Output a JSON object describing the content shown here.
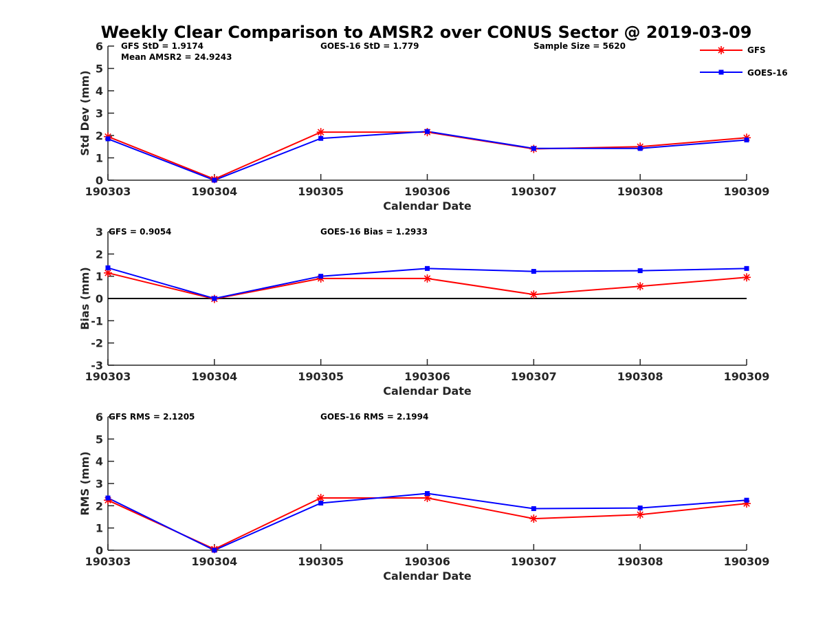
{
  "chart_data": [
    {
      "type": "line",
      "title": "Weekly Clear Comparison to AMSR2 over CONUS Sector @ 2019-03-09",
      "categories": [
        "190303",
        "190304",
        "190305",
        "190306",
        "190307",
        "190308",
        "190309"
      ],
      "xlabel": "Calendar Date",
      "ylabel": "Std Dev (mm)",
      "ylim": [
        0,
        6
      ],
      "yticks": [
        "0",
        "1",
        "2",
        "3",
        "4",
        "5",
        "6"
      ],
      "grid": false,
      "legend_position": "top-right",
      "annotations": [
        "GFS StD = 1.9174",
        "Mean AMSR2 = 24.9243",
        "GOES-16 StD = 1.779",
        "Sample Size = 5620"
      ],
      "series": [
        {
          "name": "GFS",
          "color": "#ff0000",
          "marker": "asterisk",
          "values": [
            1.95,
            0.05,
            2.15,
            2.15,
            1.4,
            1.5,
            1.9
          ]
        },
        {
          "name": "GOES-16",
          "color": "#0000ff",
          "marker": "square",
          "values": [
            1.85,
            0.0,
            1.87,
            2.18,
            1.42,
            1.42,
            1.8
          ]
        }
      ]
    },
    {
      "type": "line",
      "categories": [
        "190303",
        "190304",
        "190305",
        "190306",
        "190307",
        "190308",
        "190309"
      ],
      "xlabel": "Calendar Date",
      "ylabel": "Bias (mm)",
      "ylim": [
        -3,
        3
      ],
      "yticks": [
        "-3",
        "-2",
        "-1",
        "0",
        "1",
        "2",
        "3"
      ],
      "zero_line": true,
      "grid": false,
      "annotations": [
        "GFS = 0.9054",
        "GOES-16 Bias  = 1.2933"
      ],
      "series": [
        {
          "name": "GFS",
          "color": "#ff0000",
          "marker": "asterisk",
          "values": [
            1.15,
            -0.02,
            0.9,
            0.9,
            0.18,
            0.55,
            0.95
          ]
        },
        {
          "name": "GOES-16",
          "color": "#0000ff",
          "marker": "square",
          "values": [
            1.38,
            0.0,
            1.0,
            1.35,
            1.22,
            1.25,
            1.35
          ]
        }
      ]
    },
    {
      "type": "line",
      "categories": [
        "190303",
        "190304",
        "190305",
        "190306",
        "190307",
        "190308",
        "190309"
      ],
      "xlabel": "Calendar Date",
      "ylabel": "RMS (mm)",
      "ylim": [
        0,
        6
      ],
      "yticks": [
        "0",
        "1",
        "2",
        "3",
        "4",
        "5",
        "6"
      ],
      "grid": false,
      "annotations": [
        "GFS RMS = 2.1205",
        "GOES-16 RMS = 2.1994"
      ],
      "series": [
        {
          "name": "GFS",
          "color": "#ff0000",
          "marker": "asterisk",
          "values": [
            2.25,
            0.05,
            2.35,
            2.35,
            1.42,
            1.6,
            2.1
          ]
        },
        {
          "name": "GOES-16",
          "color": "#0000ff",
          "marker": "square",
          "values": [
            2.35,
            0.0,
            2.12,
            2.55,
            1.87,
            1.9,
            2.25
          ]
        }
      ]
    }
  ]
}
